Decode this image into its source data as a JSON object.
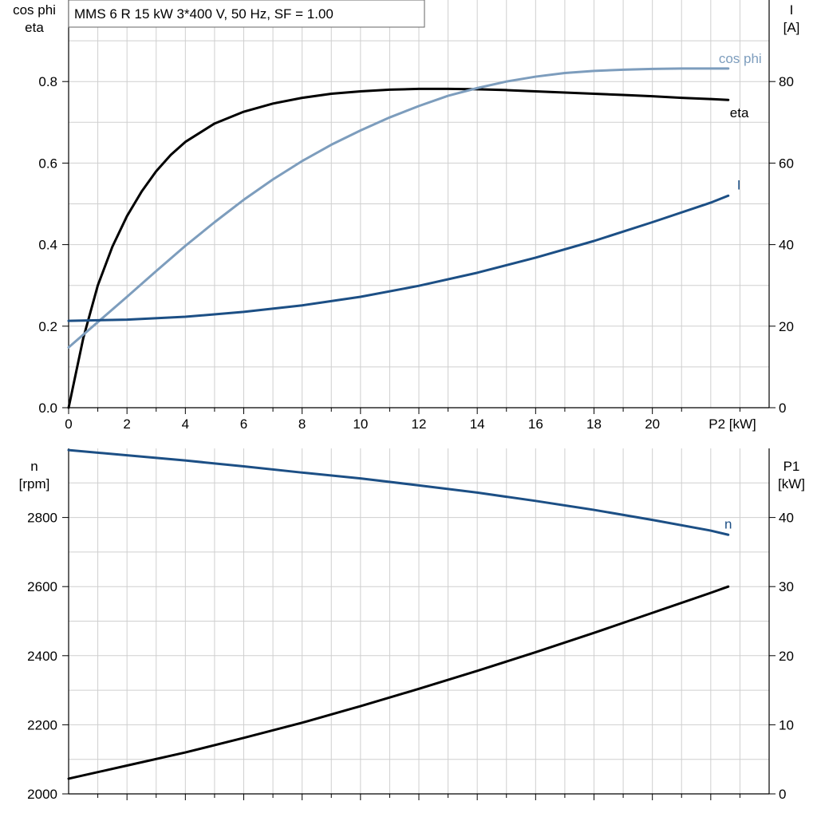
{
  "chart_data": [
    {
      "type": "line",
      "title": "MMS 6 R   15 kW   3*400 V, 50 Hz, SF = 1.00",
      "xlabel": "P2 [kW]",
      "xlim": [
        0,
        24
      ],
      "x_ticks": [
        "0",
        "2",
        "4",
        "6",
        "8",
        "10",
        "12",
        "14",
        "16",
        "18",
        "20"
      ],
      "x_ticks_mid": [
        1,
        3,
        5,
        7,
        9,
        11,
        13,
        15,
        17,
        19,
        21,
        23
      ],
      "y_left": {
        "label_lines": [
          "cos phi",
          "eta"
        ],
        "lim": [
          0,
          1.0
        ],
        "ticks": [
          "0.0",
          "0.2",
          "0.4",
          "0.6",
          "0.8"
        ],
        "tick_values": [
          0,
          0.2,
          0.4,
          0.6,
          0.8
        ]
      },
      "y_right": {
        "label_lines": [
          "I",
          "[A]"
        ],
        "lim": [
          0,
          100
        ],
        "ticks": [
          "0",
          "20",
          "40",
          "60",
          "80"
        ],
        "tick_values": [
          0,
          20,
          40,
          60,
          80
        ]
      },
      "grid": true,
      "series": [
        {
          "name": "eta",
          "axis": "left",
          "color": "#000000",
          "x": [
            0,
            0.5,
            1,
            1.5,
            2,
            2.5,
            3,
            3.5,
            4,
            5,
            6,
            7,
            8,
            9,
            10,
            11,
            12,
            13,
            14,
            15,
            16,
            17,
            18,
            19,
            20,
            21,
            22,
            22.6
          ],
          "y": [
            0.0,
            0.17,
            0.3,
            0.395,
            0.47,
            0.53,
            0.58,
            0.62,
            0.652,
            0.697,
            0.726,
            0.746,
            0.76,
            0.77,
            0.776,
            0.78,
            0.782,
            0.782,
            0.781,
            0.779,
            0.776,
            0.773,
            0.77,
            0.767,
            0.764,
            0.76,
            0.757,
            0.755
          ]
        },
        {
          "name": "cos phi",
          "axis": "left",
          "color": "#7d9dbd",
          "x": [
            0,
            1,
            2,
            3,
            4,
            5,
            6,
            7,
            8,
            9,
            10,
            11,
            12,
            13,
            14,
            15,
            16,
            17,
            18,
            19,
            20,
            21,
            22,
            22.6
          ],
          "y": [
            0.148,
            0.21,
            0.272,
            0.335,
            0.397,
            0.455,
            0.51,
            0.56,
            0.605,
            0.645,
            0.68,
            0.712,
            0.74,
            0.765,
            0.784,
            0.8,
            0.812,
            0.821,
            0.826,
            0.829,
            0.831,
            0.832,
            0.832,
            0.832
          ]
        },
        {
          "name": "I",
          "axis": "right",
          "color": "#1c4f85",
          "x": [
            0,
            2,
            4,
            6,
            8,
            10,
            12,
            14,
            16,
            18,
            20,
            22,
            22.6
          ],
          "y": [
            21.3,
            21.6,
            22.3,
            23.5,
            25.1,
            27.2,
            29.9,
            33.1,
            36.8,
            40.9,
            45.5,
            50.3,
            52.0
          ]
        }
      ]
    },
    {
      "type": "line",
      "title": "",
      "xlabel": "",
      "xlim": [
        0,
        24
      ],
      "y_left": {
        "label_lines": [
          "n",
          "[rpm]"
        ],
        "lim": [
          2000,
          3000
        ],
        "ticks": [
          "2000",
          "2200",
          "2400",
          "2600",
          "2800"
        ],
        "tick_values": [
          2000,
          2200,
          2400,
          2600,
          2800
        ]
      },
      "y_right": {
        "label_lines": [
          "P1",
          "[kW]"
        ],
        "lim": [
          0,
          50
        ],
        "ticks": [
          "0",
          "10",
          "20",
          "30",
          "40"
        ],
        "tick_values": [
          0,
          10,
          20,
          30,
          40
        ]
      },
      "grid": true,
      "series": [
        {
          "name": "n",
          "axis": "left",
          "color": "#1c4f85",
          "x": [
            0,
            2,
            4,
            6,
            8,
            10,
            12,
            14,
            16,
            18,
            20,
            22,
            22.6
          ],
          "y": [
            2995,
            2980,
            2965,
            2948,
            2930,
            2913,
            2893,
            2872,
            2848,
            2822,
            2793,
            2762,
            2750
          ]
        },
        {
          "name": "",
          "axis": "right",
          "color": "#000000",
          "x": [
            0,
            2,
            4,
            6,
            8,
            10,
            12,
            14,
            16,
            18,
            20,
            22,
            22.6
          ],
          "y": [
            2.2,
            4.1,
            6.0,
            8.1,
            10.3,
            12.7,
            15.2,
            17.8,
            20.5,
            23.3,
            26.2,
            29.1,
            30.0
          ]
        }
      ]
    }
  ]
}
